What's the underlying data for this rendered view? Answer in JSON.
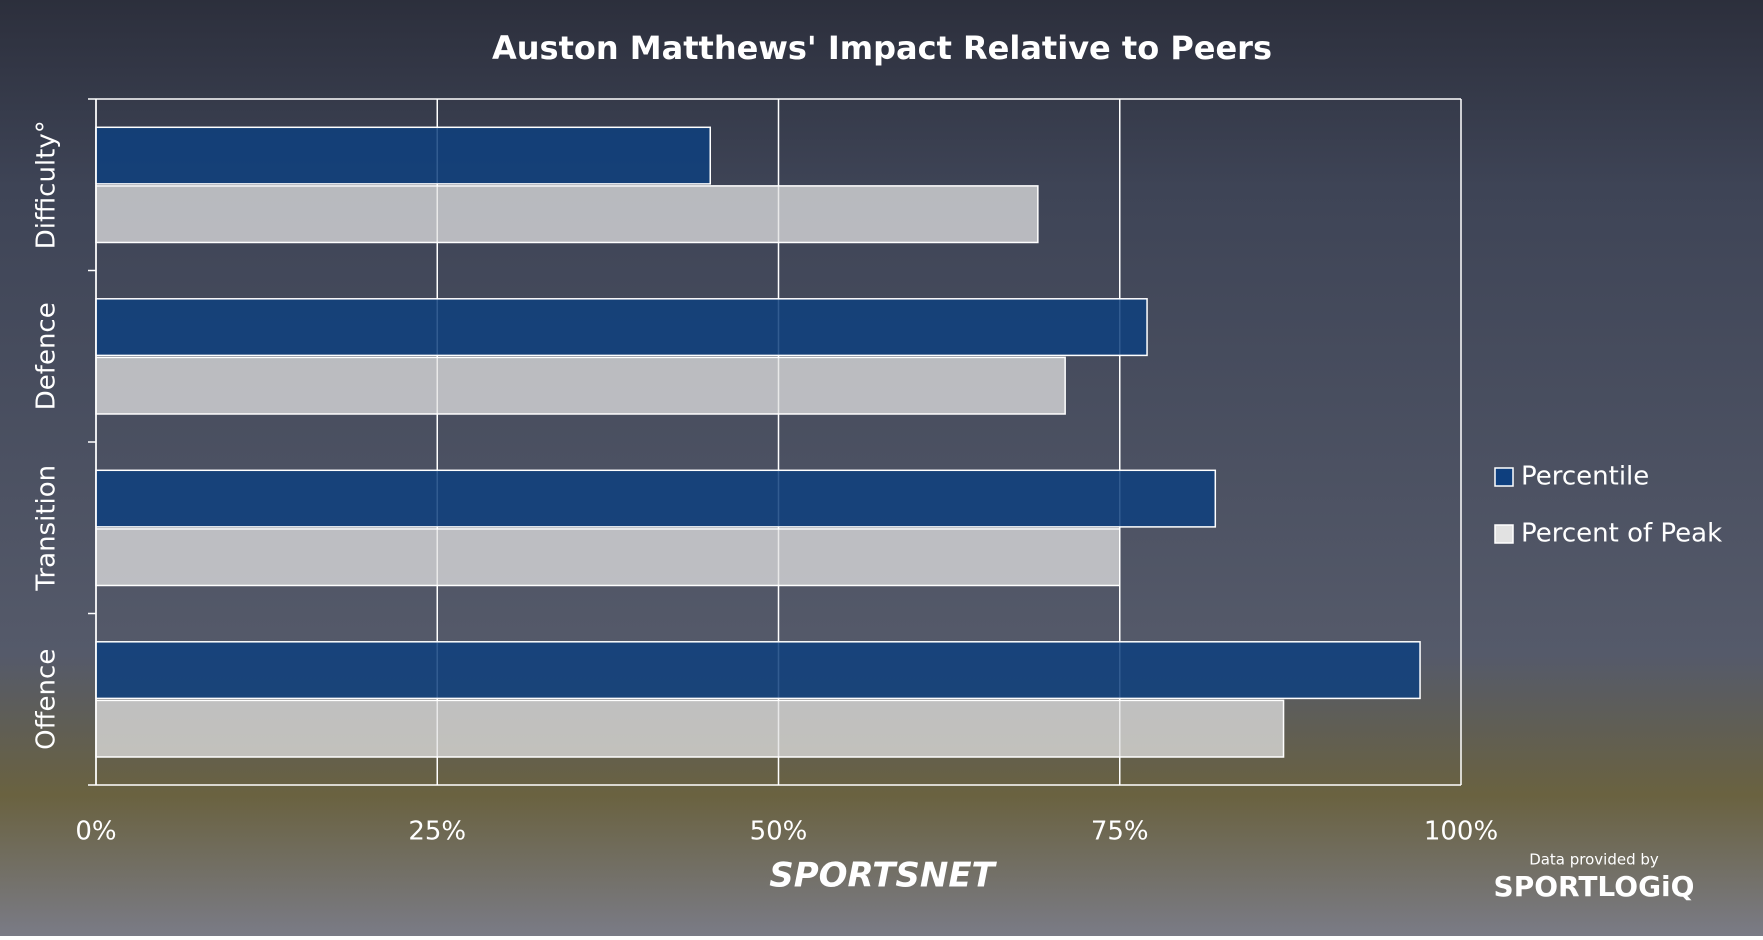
{
  "chart_data": {
    "type": "hbar",
    "title": "Auston Matthews' Impact Relative to Peers",
    "categories": [
      "Difficulty°",
      "Defence",
      "Transition",
      "Offence"
    ],
    "series": [
      {
        "name": "Percentile",
        "color": "#0e3f7e",
        "values": [
          45,
          77,
          82,
          97
        ]
      },
      {
        "name": "Percent of Peak",
        "color": "#e2e2e2",
        "values": [
          69,
          71,
          75,
          87
        ]
      }
    ],
    "xlim": [
      0,
      100
    ],
    "xticks": [
      {
        "value": 0,
        "label": "0%"
      },
      {
        "value": 25,
        "label": "25%"
      },
      {
        "value": 50,
        "label": "50%"
      },
      {
        "value": 75,
        "label": "75%"
      },
      {
        "value": 100,
        "label": "100%"
      }
    ],
    "grid": true,
    "legend": "right"
  },
  "footer": {
    "broadcaster": "SPORTSNET",
    "credit": "Data provided by",
    "provider": "SPORTLOGiQ"
  }
}
